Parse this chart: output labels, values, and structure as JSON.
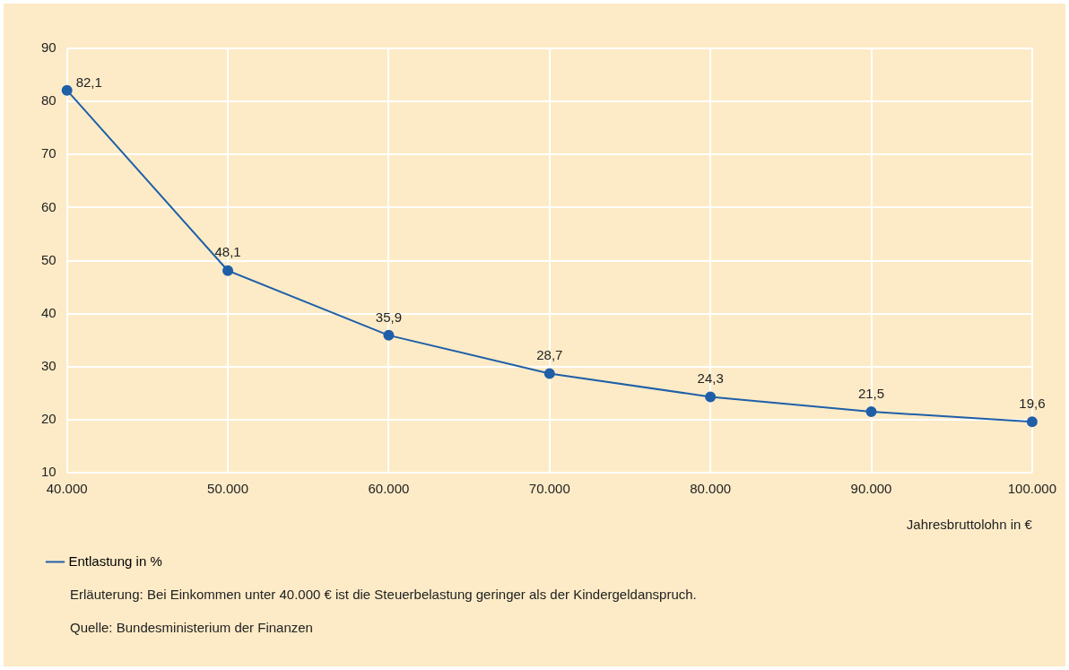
{
  "chart_data": {
    "type": "line",
    "xlabel": "Jahresbruttolohn in €",
    "x": [
      40000,
      50000,
      60000,
      70000,
      80000,
      90000,
      100000
    ],
    "series": [
      {
        "name": "Entlastung in %",
        "color": "#1f5fa8",
        "values": [
          82.1,
          48.1,
          35.9,
          28.7,
          24.3,
          21.5,
          19.6
        ],
        "value_labels": [
          "82,1",
          "48,1",
          "35,9",
          "28,7",
          "24,3",
          "21,5",
          "19,6"
        ]
      }
    ],
    "xlim": [
      40000,
      100000
    ],
    "xticks": [
      {
        "value": 40000,
        "label": "40.000"
      },
      {
        "value": 50000,
        "label": "50.000"
      },
      {
        "value": 60000,
        "label": "60.000"
      },
      {
        "value": 70000,
        "label": "70.000"
      },
      {
        "value": 80000,
        "label": "80.000"
      },
      {
        "value": 90000,
        "label": "90.000"
      },
      {
        "value": 100000,
        "label": "100.000"
      }
    ],
    "ylim": [
      10,
      90
    ],
    "yticks": [
      10,
      20,
      30,
      40,
      50,
      60,
      70,
      80,
      90
    ],
    "grid": true,
    "legend": "bottom left",
    "marker": "circle",
    "line_style": "solid",
    "annotations": [
      "Erläuterung: Bei Einkommen unter 40.000 € ist die Steuerbelastung geringer als der Kindergeldanspruch.",
      "Quelle: Bundesministerium der Finanzen"
    ]
  }
}
